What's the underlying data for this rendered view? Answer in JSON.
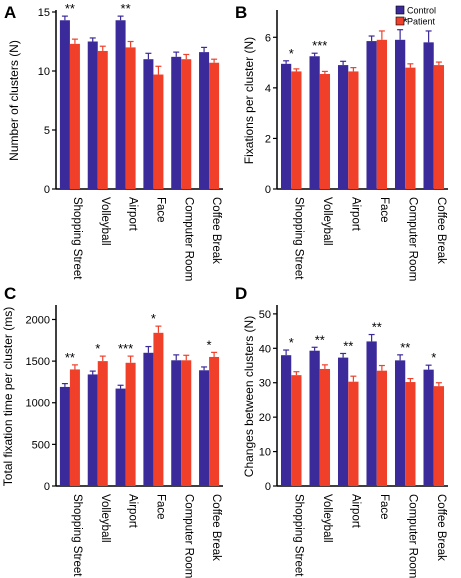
{
  "colors": {
    "control": "#3b2a9a",
    "patient": "#f0402a"
  },
  "legend": [
    {
      "name": "Control",
      "color": "#3b2a9a"
    },
    {
      "name": "Patient",
      "color": "#f0402a"
    }
  ],
  "chart_data": [
    {
      "type": "bar",
      "panel": "A",
      "ylabel": "Number of clusters (N)",
      "ylim": [
        0,
        15
      ],
      "yticks": [
        0,
        5,
        10,
        15
      ],
      "categories": [
        "Shopping Street",
        "Volleyball",
        "Airport",
        "Face",
        "Computer Room",
        "Coffee Break"
      ],
      "series": [
        {
          "name": "Control",
          "values": [
            14.3,
            12.5,
            14.3,
            11.0,
            11.2,
            11.6
          ],
          "errors": [
            0.35,
            0.3,
            0.35,
            0.5,
            0.4,
            0.4
          ]
        },
        {
          "name": "Patient",
          "values": [
            12.3,
            11.7,
            12.0,
            9.7,
            11.0,
            10.7
          ],
          "errors": [
            0.4,
            0.4,
            0.5,
            0.7,
            0.4,
            0.3
          ]
        }
      ],
      "significance": [
        "**",
        "",
        "**",
        "",
        "",
        ""
      ]
    },
    {
      "type": "bar",
      "panel": "B",
      "ylabel": "Fixations per cluster (N)",
      "ylim": [
        0,
        7
      ],
      "yticks": [
        0,
        2,
        4,
        6
      ],
      "categories": [
        "Shopping Street",
        "Volleyball",
        "Airport",
        "Face",
        "Computer Room",
        "Coffee Break"
      ],
      "series": [
        {
          "name": "Control",
          "values": [
            4.95,
            5.25,
            4.9,
            5.85,
            5.9,
            5.8
          ],
          "errors": [
            0.12,
            0.12,
            0.15,
            0.2,
            0.4,
            0.45
          ]
        },
        {
          "name": "Patient",
          "values": [
            4.65,
            4.55,
            4.65,
            5.9,
            4.8,
            4.9
          ],
          "errors": [
            0.1,
            0.1,
            0.15,
            0.35,
            0.15,
            0.12
          ]
        }
      ],
      "significance": [
        "*",
        "***",
        "",
        "",
        "*",
        ""
      ]
    },
    {
      "type": "bar",
      "panel": "C",
      "ylabel": "Total fixation time per cluster (ms)",
      "ylim": [
        0,
        2150
      ],
      "yticks": [
        0,
        500,
        1000,
        1500,
        2000
      ],
      "categories": [
        "Shopping Street",
        "Volleyball",
        "Airport",
        "Face",
        "Computer Room",
        "Coffee Break"
      ],
      "series": [
        {
          "name": "Control",
          "values": [
            1190,
            1340,
            1170,
            1600,
            1510,
            1390
          ],
          "errors": [
            40,
            40,
            40,
            75,
            65,
            40
          ]
        },
        {
          "name": "Patient",
          "values": [
            1400,
            1500,
            1480,
            1840,
            1510,
            1550
          ],
          "errors": [
            55,
            60,
            80,
            80,
            60,
            55
          ]
        }
      ],
      "significance": [
        "**",
        "*",
        "***",
        "*",
        "",
        "*"
      ]
    },
    {
      "type": "bar",
      "panel": "D",
      "ylabel": "Changes between clusters (N)",
      "ylim": [
        0,
        52
      ],
      "yticks": [
        0,
        10,
        20,
        30,
        40,
        50
      ],
      "categories": [
        "Shopping Street",
        "Volleyball",
        "Airport",
        "Face",
        "Computer Room",
        "Coffee Break"
      ],
      "series": [
        {
          "name": "Control",
          "values": [
            38,
            39.3,
            37.3,
            42,
            36.5,
            33.8
          ],
          "errors": [
            1.5,
            1.0,
            1.2,
            2.0,
            1.6,
            1.3
          ]
        },
        {
          "name": "Patient",
          "values": [
            32.2,
            34,
            30.3,
            33.5,
            30.2,
            29
          ],
          "errors": [
            1.0,
            1.2,
            1.6,
            1.5,
            1.0,
            1.0
          ]
        }
      ],
      "significance": [
        "*",
        "**",
        "**",
        "**",
        "**",
        "*"
      ]
    }
  ]
}
